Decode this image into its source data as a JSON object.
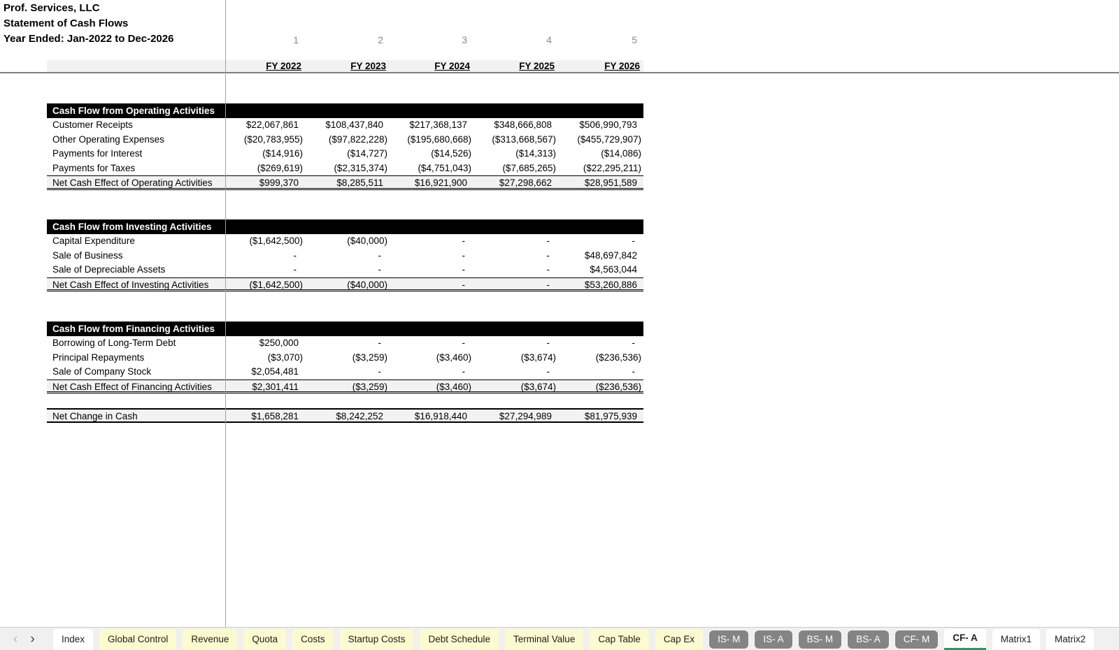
{
  "header": {
    "company": "Prof. Services, LLC",
    "statement": "Statement of Cash Flows",
    "period": "Year Ended: Jan-2022 to Dec-2026"
  },
  "table": {
    "column_numbers": [
      "1",
      "2",
      "3",
      "4",
      "5"
    ],
    "columns": [
      "FY 2022",
      "FY 2023",
      "FY 2024",
      "FY 2025",
      "FY 2026"
    ],
    "sections": [
      {
        "title": "Cash Flow from Operating Activities",
        "rows": [
          {
            "label": "Customer Receipts",
            "values": [
              "$22,067,861",
              "$108,437,840",
              "$217,368,137",
              "$348,666,808",
              "$506,990,793"
            ]
          },
          {
            "label": "Other Operating Expenses",
            "values": [
              "($20,783,955)",
              "($97,822,228)",
              "($195,680,668)",
              "($313,668,567)",
              "($455,729,907)"
            ]
          },
          {
            "label": "Payments for Interest",
            "values": [
              "($14,916)",
              "($14,727)",
              "($14,526)",
              "($14,313)",
              "($14,086)"
            ]
          },
          {
            "label": "Payments for Taxes",
            "values": [
              "($269,619)",
              "($2,315,374)",
              "($4,751,043)",
              "($7,685,265)",
              "($22,295,211)"
            ]
          }
        ],
        "total": {
          "label": "Net Cash Effect of Operating Activities",
          "values": [
            "$999,370",
            "$8,285,511",
            "$16,921,900",
            "$27,298,662",
            "$28,951,589"
          ]
        }
      },
      {
        "title": "Cash Flow from Investing Activities",
        "rows": [
          {
            "label": "Capital Expenditure",
            "values": [
              "($1,642,500)",
              "($40,000)",
              "-",
              "-",
              "-"
            ]
          },
          {
            "label": "Sale of Business",
            "values": [
              "-",
              "-",
              "-",
              "-",
              "$48,697,842"
            ]
          },
          {
            "label": "Sale of Depreciable Assets",
            "values": [
              "-",
              "-",
              "-",
              "-",
              "$4,563,044"
            ]
          }
        ],
        "total": {
          "label": "Net Cash Effect of Investing Activities",
          "values": [
            "($1,642,500)",
            "($40,000)",
            "-",
            "-",
            "$53,260,886"
          ]
        }
      },
      {
        "title": "Cash Flow from Financing Activities",
        "rows": [
          {
            "label": "Borrowing of Long-Term Debt",
            "values": [
              "$250,000",
              "-",
              "-",
              "-",
              "-"
            ]
          },
          {
            "label": "Principal Repayments",
            "values": [
              "($3,070)",
              "($3,259)",
              "($3,460)",
              "($3,674)",
              "($236,536)"
            ]
          },
          {
            "label": "Sale of Company Stock",
            "values": [
              "$2,054,481",
              "-",
              "-",
              "-",
              "-"
            ]
          }
        ],
        "total": {
          "label": "Net Cash Effect of Financing Activities",
          "values": [
            "$2,301,411",
            "($3,259)",
            "($3,460)",
            "($3,674)",
            "($236,536)"
          ]
        }
      }
    ],
    "net_change": {
      "label": "Net Change in Cash",
      "values": [
        "$1,658,281",
        "$8,242,252",
        "$16,918,440",
        "$27,294,989",
        "$81,975,939"
      ]
    }
  },
  "sheet_tabs": {
    "nav_prev": "‹",
    "nav_next": "›",
    "tabs": [
      {
        "label": "Index",
        "style": "white"
      },
      {
        "label": "Global Control",
        "style": "yellow"
      },
      {
        "label": "Revenue",
        "style": "yellow"
      },
      {
        "label": "Quota",
        "style": "yellow"
      },
      {
        "label": "Costs",
        "style": "yellow"
      },
      {
        "label": "Startup Costs",
        "style": "yellow"
      },
      {
        "label": "Debt Schedule",
        "style": "yellow"
      },
      {
        "label": "Terminal Value",
        "style": "yellow"
      },
      {
        "label": "Cap Table",
        "style": "yellow"
      },
      {
        "label": "Cap Ex",
        "style": "yellow"
      },
      {
        "label": "IS- M",
        "style": "gray"
      },
      {
        "label": "IS- A",
        "style": "gray"
      },
      {
        "label": "BS- M",
        "style": "gray"
      },
      {
        "label": "BS- A",
        "style": "gray"
      },
      {
        "label": "CF- M",
        "style": "gray"
      },
      {
        "label": "CF- A",
        "style": "active"
      },
      {
        "label": "Matrix1",
        "style": "white"
      },
      {
        "label": "Matrix2",
        "style": "white"
      }
    ]
  },
  "colors": {
    "section_bar_bg": "#000000",
    "section_bar_text": "#ffffff",
    "total_row_bg": "#f2f2f2",
    "fy_band_bg": "#f2f2f2",
    "tab_yellow": "#fcfacf",
    "tab_gray": "#848484",
    "active_tab_underline": "#1f9d61",
    "pane_line": "#7f7f7f"
  }
}
